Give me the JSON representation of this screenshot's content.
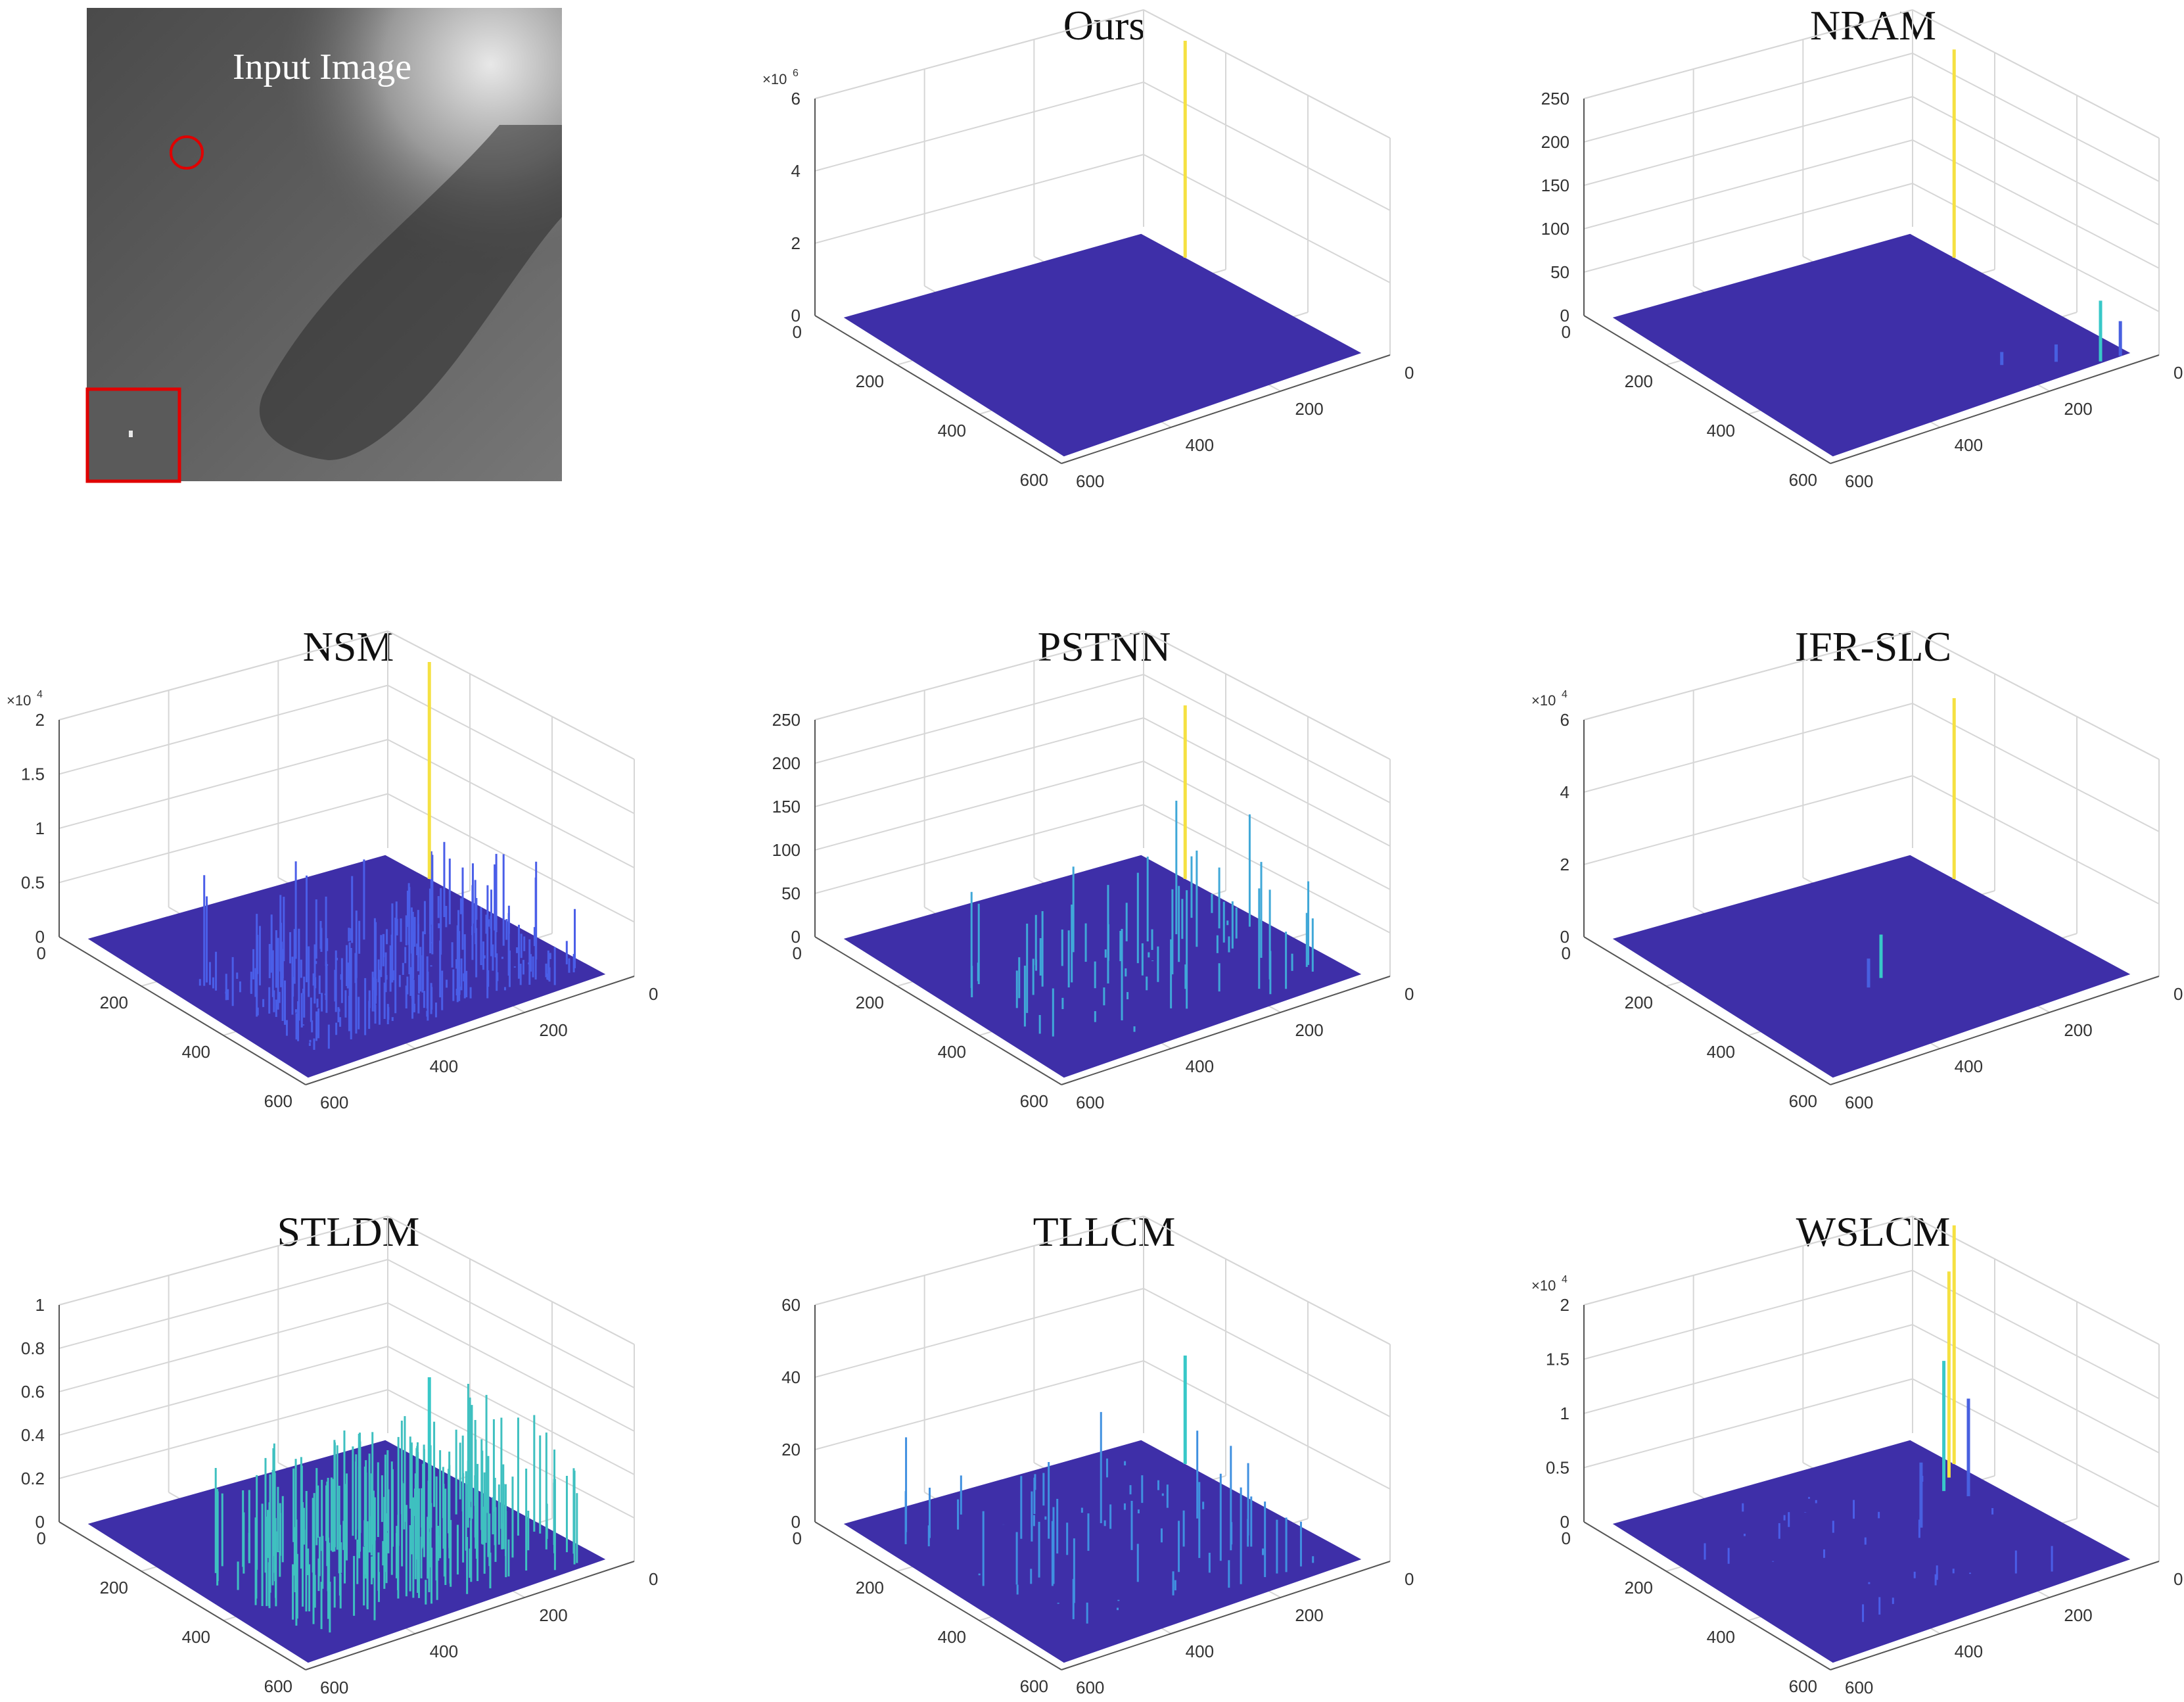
{
  "figure": {
    "input_panel": {
      "title": "Input Image"
    },
    "colors": {
      "surface": "#3e2fa8",
      "title_default": "#111111",
      "title_highlight": "#e00000",
      "marker": "#e00000"
    }
  },
  "chart_data": [
    {
      "id": "ours",
      "type": "surface3d",
      "title": "Ours",
      "title_color": "#e00000",
      "zlabel_exp": "6",
      "zticks": [
        "0",
        "2",
        "4",
        "6"
      ],
      "zlim": [
        0,
        6
      ],
      "xticks": [
        "0",
        "200",
        "400",
        "600"
      ],
      "yticks": [
        "0",
        "200",
        "400",
        "600"
      ],
      "peaks": [
        {
          "x": 120,
          "y": 0,
          "z": 6,
          "color": "yellow"
        }
      ]
    },
    {
      "id": "nram",
      "type": "surface3d",
      "title": "NRAM",
      "title_color": "#111111",
      "zlabel_exp": "",
      "zticks": [
        "0",
        "50",
        "100",
        "150",
        "200",
        "250"
      ],
      "zlim": [
        0,
        250
      ],
      "xticks": [
        "0",
        "200",
        "400",
        "600"
      ],
      "yticks": [
        "0",
        "200",
        "400",
        "600"
      ],
      "peaks": [
        {
          "x": 120,
          "y": 0,
          "z": 240,
          "color": "yellow"
        },
        {
          "x": 600,
          "y": 20,
          "z": 40,
          "color": "blue"
        },
        {
          "x": 600,
          "y": 60,
          "z": 70,
          "color": "cyan"
        },
        {
          "x": 560,
          "y": 120,
          "z": 20,
          "color": "blue"
        },
        {
          "x": 520,
          "y": 200,
          "z": 15,
          "color": "blue"
        }
      ]
    },
    {
      "id": "nsm",
      "type": "surface3d",
      "title": "NSM",
      "title_color": "#111111",
      "zlabel_exp": "4",
      "zticks": [
        "0",
        "0.5",
        "1",
        "1.5",
        "2"
      ],
      "zlim": [
        0,
        2
      ],
      "xticks": [
        "0",
        "200",
        "400",
        "600"
      ],
      "yticks": [
        "0",
        "200",
        "400",
        "600"
      ],
      "peaks": [
        {
          "x": 120,
          "y": 0,
          "z": 2.0,
          "color": "yellow"
        }
      ]
    },
    {
      "id": "pstnn",
      "type": "surface3d",
      "title": "PSTNN",
      "title_color": "#111111",
      "zlabel_exp": "",
      "zticks": [
        "0",
        "50",
        "100",
        "150",
        "200",
        "250"
      ],
      "zlim": [
        0,
        250
      ],
      "xticks": [
        "0",
        "200",
        "400",
        "600"
      ],
      "yticks": [
        "0",
        "200",
        "400",
        "600"
      ],
      "peaks": [
        {
          "x": 120,
          "y": 0,
          "z": 200,
          "color": "yellow"
        }
      ]
    },
    {
      "id": "ifr",
      "type": "surface3d",
      "title": "IFR-SLC",
      "title_color": "#111111",
      "zlabel_exp": "4",
      "zticks": [
        "0",
        "2",
        "4",
        "6"
      ],
      "zlim": [
        0,
        6
      ],
      "xticks": [
        "0",
        "200",
        "400",
        "600"
      ],
      "yticks": [
        "0",
        "200",
        "400",
        "600"
      ],
      "peaks": [
        {
          "x": 120,
          "y": 0,
          "z": 5.0,
          "color": "yellow"
        },
        {
          "x": 380,
          "y": 340,
          "z": 1.2,
          "color": "cyan"
        },
        {
          "x": 400,
          "y": 380,
          "z": 0.8,
          "color": "blue"
        }
      ]
    },
    {
      "id": "stldm",
      "type": "surface3d",
      "title": "STLDM",
      "title_color": "#111111",
      "zlabel_exp": "",
      "zticks": [
        "0",
        "0.2",
        "0.4",
        "0.6",
        "0.8",
        "1"
      ],
      "zlim": [
        0,
        1
      ],
      "xticks": [
        "0",
        "200",
        "400",
        "600"
      ],
      "yticks": [
        "0",
        "200",
        "400",
        "600"
      ],
      "peaks": [
        {
          "x": 120,
          "y": 0,
          "z": 0.4,
          "color": "cyan"
        }
      ]
    },
    {
      "id": "tllcm",
      "type": "surface3d",
      "title": "TLLCM",
      "title_color": "#111111",
      "zlabel_exp": "",
      "zticks": [
        "0",
        "20",
        "40",
        "60"
      ],
      "zlim": [
        0,
        60
      ],
      "xticks": [
        "0",
        "200",
        "400",
        "600"
      ],
      "yticks": [
        "0",
        "200",
        "400",
        "600"
      ],
      "peaks": [
        {
          "x": 120,
          "y": 0,
          "z": 30,
          "color": "cyan"
        }
      ]
    },
    {
      "id": "wslcm",
      "type": "surface3d",
      "title": "WSLCM",
      "title_color": "#111111",
      "zlabel_exp": "4",
      "zticks": [
        "0",
        "0.5",
        "1",
        "1.5",
        "2"
      ],
      "zlim": [
        0,
        2
      ],
      "xticks": [
        "0",
        "200",
        "400",
        "600"
      ],
      "yticks": [
        "0",
        "200",
        "400",
        "600"
      ],
      "peaks": [
        {
          "x": 120,
          "y": 0,
          "z": 2.2,
          "color": "yellow"
        },
        {
          "x": 160,
          "y": 40,
          "z": 1.9,
          "color": "yellow"
        },
        {
          "x": 200,
          "y": 80,
          "z": 1.2,
          "color": "cyan"
        },
        {
          "x": 240,
          "y": 60,
          "z": 0.9,
          "color": "blue"
        },
        {
          "x": 300,
          "y": 200,
          "z": 0.6,
          "color": "blue"
        }
      ]
    }
  ]
}
